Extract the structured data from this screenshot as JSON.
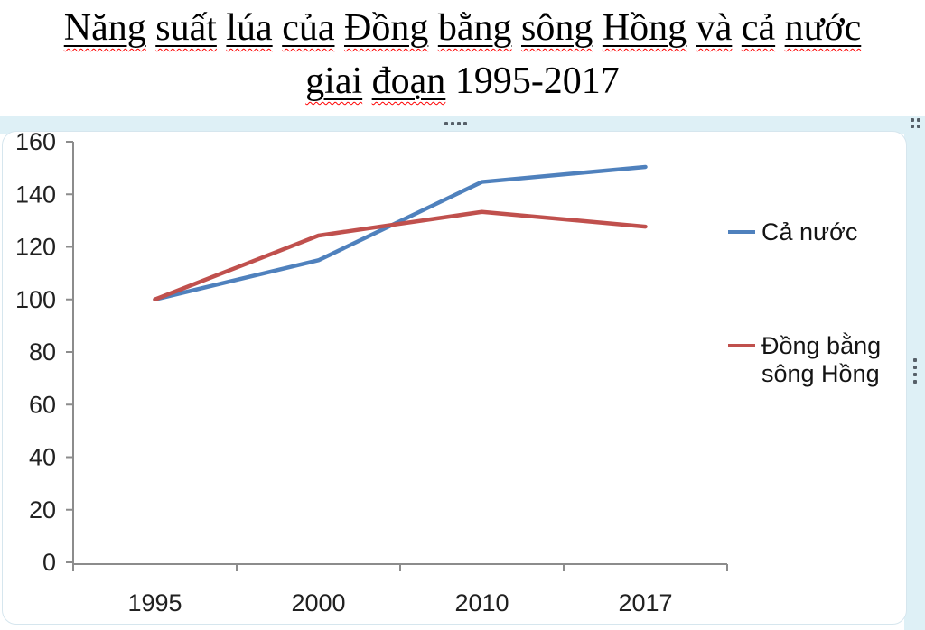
{
  "title": {
    "full": "Năng suất lúa của Đồng bằng sông Hồng và cả nước giai đoạn 1995-2017",
    "lines": [
      [
        {
          "t": "Năng",
          "m": true
        },
        {
          "t": "suất",
          "m": true
        },
        {
          "t": "lúa",
          "m": true
        },
        {
          "t": "của",
          "m": true
        },
        {
          "t": "Đồng",
          "m": true
        },
        {
          "t": "bằng",
          "m": true
        },
        {
          "t": "sông",
          "m": true
        },
        {
          "t": "Hồng",
          "m": true
        },
        {
          "t": "và",
          "m": true
        },
        {
          "t": "cả",
          "m": true
        },
        {
          "t": "nước",
          "m": true
        }
      ],
      [
        {
          "t": "giai",
          "m": true
        },
        {
          "t": "đoạn",
          "m": true
        },
        {
          "t": "1995-2017",
          "m": false
        }
      ]
    ]
  },
  "chart_data": {
    "type": "line",
    "title": "Năng suất lúa của Đồng bằng sông Hồng và cả nước giai đoạn 1995-2017",
    "categories": [
      "1995",
      "2000",
      "2010",
      "2017"
    ],
    "series": [
      {
        "name": "Cả nước",
        "color": "#4F81BD",
        "values": [
          100,
          114.9,
          144.7,
          150.4
        ]
      },
      {
        "name": "Đồng bằng sông Hồng",
        "color": "#C0504D",
        "values": [
          100,
          124.3,
          133.3,
          127.7
        ]
      }
    ],
    "xlabel": "",
    "ylabel": "",
    "ylim": [
      0,
      160
    ],
    "ytick_step": 20,
    "grid": false,
    "legend_position": "right"
  },
  "colors": {
    "axis": "#8c8c8c",
    "tick_label": "#212121",
    "selection_band": "#def0f6",
    "frame_border": "#d6e6ee",
    "grip_dot": "#566069",
    "misspell_wave": "#ff0000"
  }
}
